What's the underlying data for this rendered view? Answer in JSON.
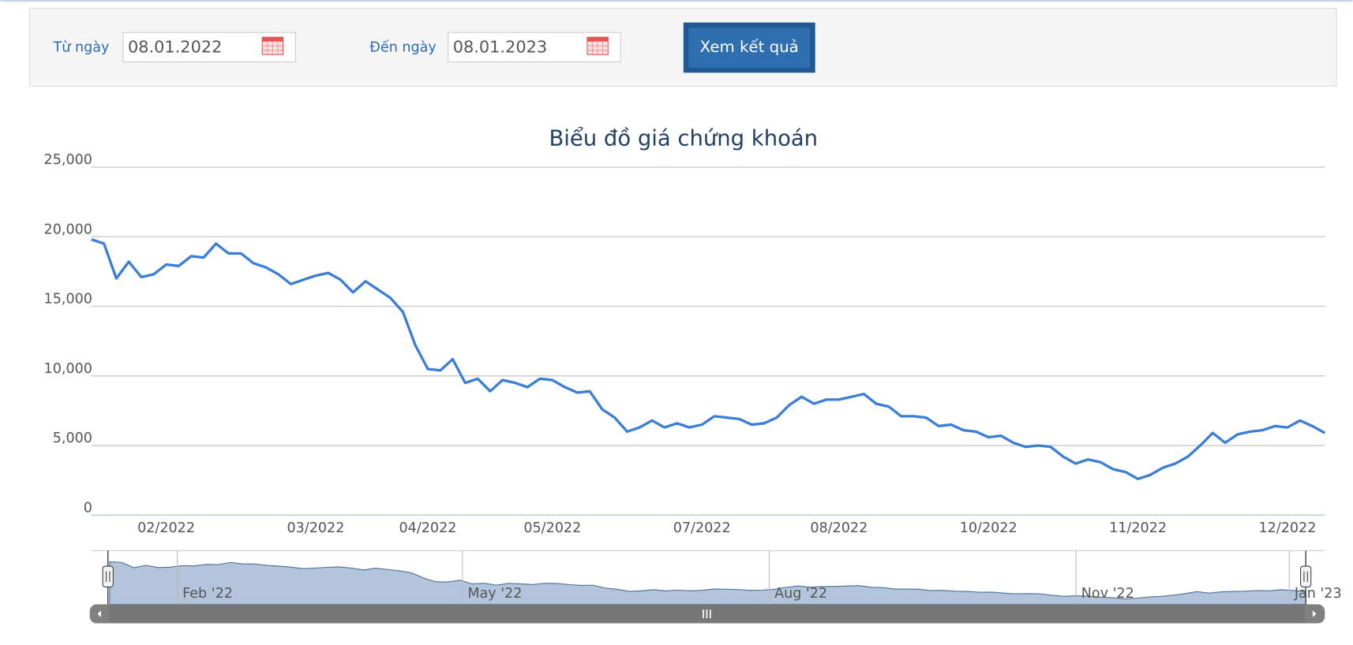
{
  "form": {
    "from_label": "Từ ngày",
    "from_value": "08.01.2022",
    "to_label": "Đến ngày",
    "to_value": "08.01.2023",
    "button": "Xem kết quả"
  },
  "chart_data": {
    "type": "line",
    "title": "Biểu đồ giá chứng khoán",
    "color": "#3a7fd5",
    "grid": true,
    "categories": [
      null,
      null,
      null,
      null,
      null,
      null,
      "02/2022",
      null,
      null,
      null,
      null,
      null,
      null,
      null,
      null,
      null,
      null,
      null,
      "03/2022",
      null,
      null,
      null,
      null,
      null,
      null,
      null,
      null,
      "04/2022",
      null,
      null,
      null,
      null,
      null,
      null,
      null,
      null,
      null,
      "05/2022",
      null,
      null,
      null,
      null,
      null,
      null,
      null,
      null,
      null,
      null,
      null,
      "07/2022",
      null,
      null,
      null,
      null,
      null,
      null,
      null,
      null,
      null,
      null,
      "08/2022",
      null,
      null,
      null,
      null,
      null,
      null,
      null,
      null,
      null,
      null,
      null,
      "10/2022",
      null,
      null,
      null,
      null,
      null,
      null,
      null,
      null,
      null,
      null,
      null,
      "11/2022",
      null,
      null,
      null,
      null,
      null,
      null,
      null,
      null,
      null,
      null,
      null,
      "12/2022",
      null,
      null,
      null
    ],
    "values": [
      19800,
      19500,
      17000,
      18200,
      17100,
      17300,
      18000,
      17900,
      18600,
      18500,
      19500,
      18800,
      18800,
      18100,
      17800,
      17300,
      16600,
      16900,
      17200,
      17400,
      16900,
      16000,
      16800,
      16200,
      15600,
      14600,
      12200,
      10500,
      10400,
      11200,
      9500,
      9800,
      8900,
      9700,
      9500,
      9200,
      9800,
      9700,
      9200,
      8800,
      8900,
      7600,
      7000,
      6000,
      6300,
      6800,
      6300,
      6600,
      6300,
      6500,
      7100,
      7000,
      6900,
      6500,
      6600,
      7000,
      7900,
      8500,
      8000,
      8300,
      8300,
      8500,
      8700,
      8000,
      7800,
      7100,
      7100,
      7000,
      6400,
      6500,
      6100,
      6000,
      5600,
      5700,
      5200,
      4900,
      5000,
      4900,
      4200,
      3700,
      4000,
      3800,
      3300,
      3100,
      2600,
      2900,
      3400,
      3700,
      4200,
      5000,
      5900,
      5200,
      5800,
      6000,
      6100,
      6400,
      6300,
      6800,
      6400,
      5900
    ],
    "ylim": [
      0,
      25000
    ],
    "yticks": [
      0,
      {
        "value": 5000,
        "label": "5,000"
      },
      {
        "value": 10000,
        "label": "10,000"
      },
      {
        "value": 15000,
        "label": "15,000"
      },
      {
        "value": 20000,
        "label": "20,000"
      },
      {
        "value": 25000,
        "label": "25,000"
      }
    ],
    "navigator_labels": [
      "Feb '22",
      "May '22",
      "Aug '22",
      "Nov '22",
      "Jan '23"
    ]
  }
}
